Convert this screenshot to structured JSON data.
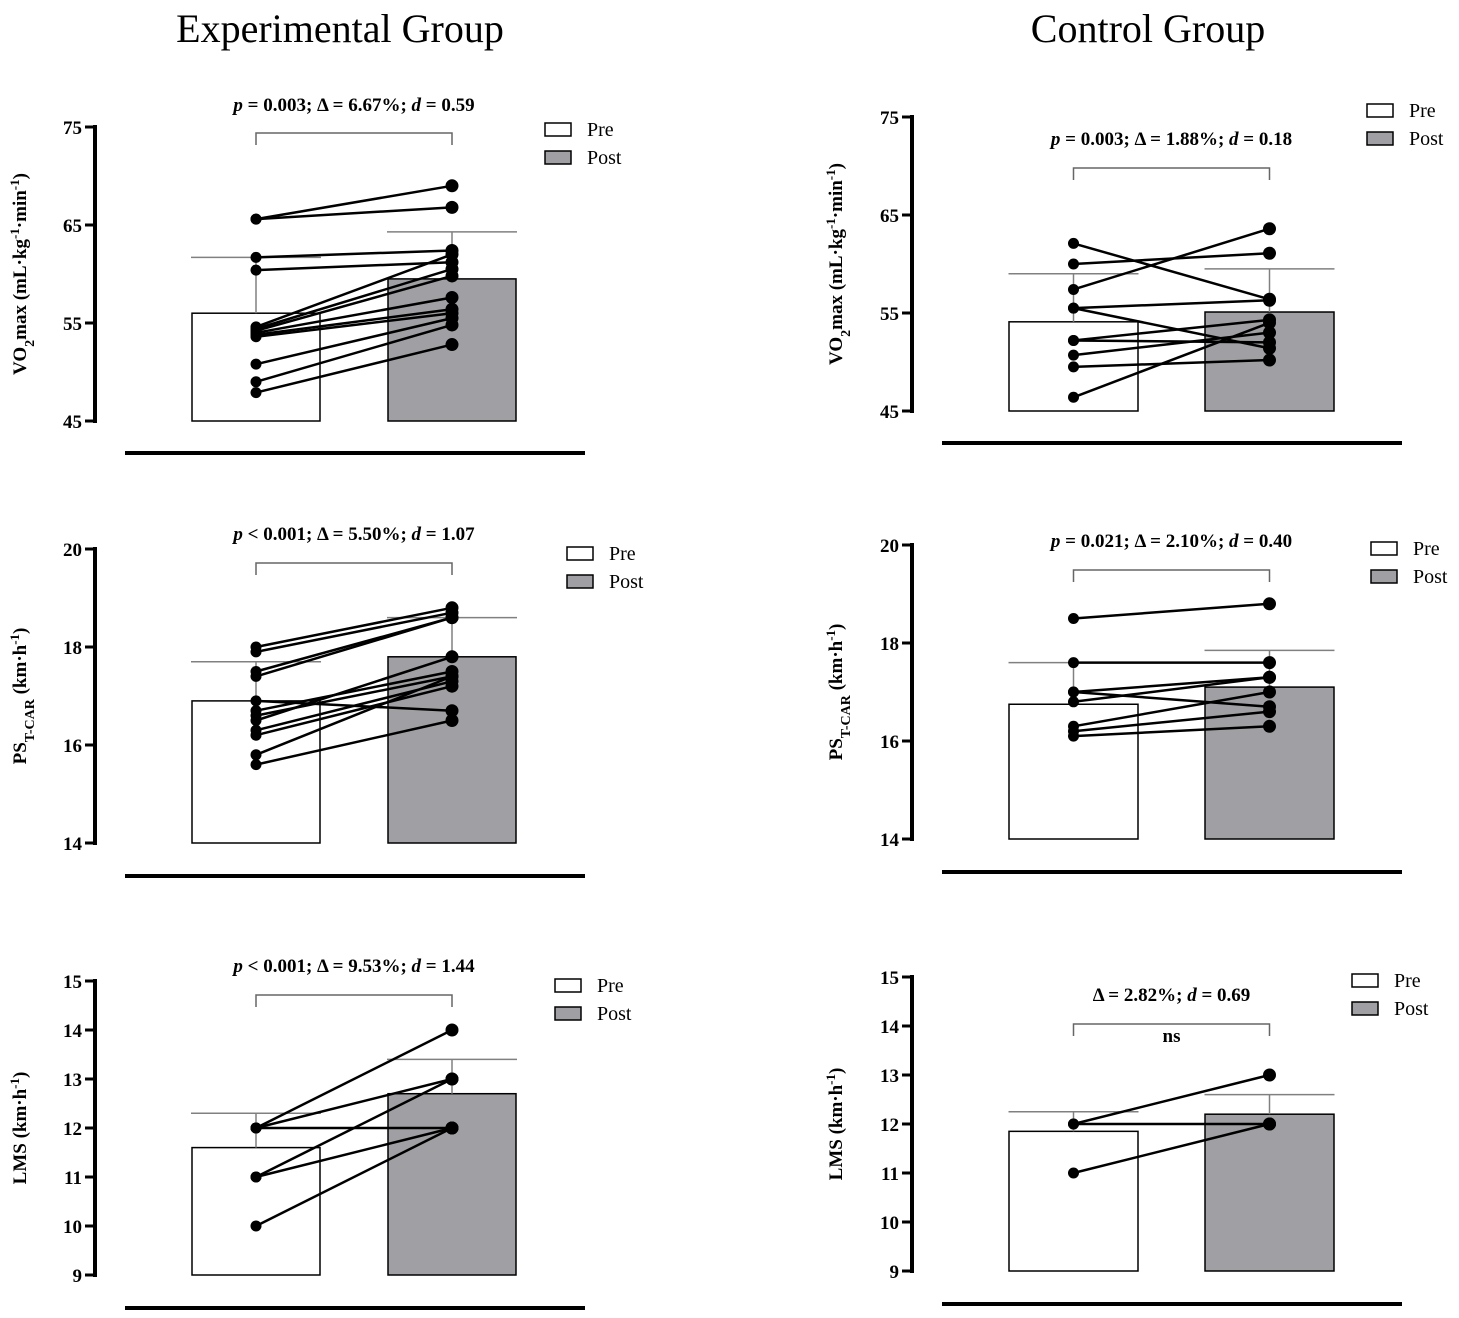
{
  "titles": [
    "Experimental Group",
    "Control Group"
  ],
  "colors": {
    "pre_fill": "#ffffff",
    "post_fill": "#a0a0a4",
    "line": "#000000",
    "errorbar": "#808080"
  },
  "chart_data": [
    {
      "id": "exp-vo2",
      "type": "bar",
      "group": "Experimental Group",
      "categories": [
        "Pre",
        "Post"
      ],
      "means": [
        56.0,
        59.5
      ],
      "sd_upper": [
        61.7,
        64.3
      ],
      "ylim": [
        45,
        75
      ],
      "yticks": [
        "45",
        "55",
        "65",
        "75"
      ],
      "ylabel": [
        {
          "t": "VO"
        },
        {
          "t": "2",
          "sub": true
        },
        {
          "t": "max  (mL·kg"
        },
        {
          "t": "-1",
          "sup": true
        },
        {
          "t": "·min"
        },
        {
          "t": "-1",
          "sup": true
        },
        {
          "t": ")"
        }
      ],
      "annotation": [
        {
          "t": "p",
          "i": true
        },
        {
          "t": " = 0.003; Δ = 6.67%; "
        },
        {
          "t": "d",
          "i": true
        },
        {
          "t": " = 0.59"
        }
      ],
      "ns": null,
      "pairs": [
        [
          65.6,
          69.0
        ],
        [
          65.6,
          66.8
        ],
        [
          61.7,
          62.4
        ],
        [
          60.4,
          61.2
        ],
        [
          54.6,
          62.0
        ],
        [
          54.4,
          60.5
        ],
        [
          54.2,
          59.8
        ],
        [
          54.0,
          57.6
        ],
        [
          53.8,
          56.4
        ],
        [
          53.6,
          56.0
        ],
        [
          50.8,
          55.5
        ],
        [
          49.0,
          54.8
        ],
        [
          47.9,
          52.8
        ]
      ],
      "legend": [
        "Pre",
        "Post"
      ]
    },
    {
      "id": "ctrl-vo2",
      "type": "bar",
      "group": "Control Group",
      "categories": [
        "Pre",
        "Post"
      ],
      "means": [
        54.1,
        55.1
      ],
      "sd_upper": [
        59.0,
        59.5
      ],
      "ylim": [
        45,
        75
      ],
      "yticks": [
        "45",
        "55",
        "65",
        "75"
      ],
      "ylabel": [
        {
          "t": "VO"
        },
        {
          "t": "2",
          "sub": true
        },
        {
          "t": "max  (mL·kg"
        },
        {
          "t": "-1",
          "sup": true
        },
        {
          "t": "·min"
        },
        {
          "t": "-1",
          "sup": true
        },
        {
          "t": ")"
        }
      ],
      "annotation": [
        {
          "t": "p",
          "i": true
        },
        {
          "t": " = 0.003; Δ = 1.88%; "
        },
        {
          "t": "d",
          "i": true
        },
        {
          "t": " = 0.18"
        }
      ],
      "ns": null,
      "pairs": [
        [
          62.1,
          56.4
        ],
        [
          60.0,
          61.1
        ],
        [
          57.4,
          63.6
        ],
        [
          55.5,
          56.3
        ],
        [
          55.5,
          51.4
        ],
        [
          52.2,
          54.3
        ],
        [
          52.2,
          52.0
        ],
        [
          50.7,
          53.0
        ],
        [
          49.5,
          50.2
        ],
        [
          46.4,
          54.0
        ]
      ],
      "legend": [
        "Pre",
        "Post"
      ]
    },
    {
      "id": "exp-ps",
      "type": "bar",
      "group": "Experimental Group",
      "categories": [
        "Pre",
        "Post"
      ],
      "means": [
        16.9,
        17.8
      ],
      "sd_upper": [
        17.7,
        18.6
      ],
      "ylim": [
        14,
        20
      ],
      "yticks": [
        "14",
        "16",
        "18",
        "20"
      ],
      "ylabel": [
        {
          "t": "PS"
        },
        {
          "t": "T-CAR",
          "sub": true
        },
        {
          "t": "  (km·h"
        },
        {
          "t": "-1",
          "sup": true
        },
        {
          "t": ")"
        }
      ],
      "annotation": [
        {
          "t": "p",
          "i": true
        },
        {
          "t": " < 0.001; Δ = 5.50%; "
        },
        {
          "t": "d",
          "i": true
        },
        {
          "t": " = 1.07"
        }
      ],
      "ns": null,
      "pairs": [
        [
          18.0,
          18.8
        ],
        [
          17.9,
          18.7
        ],
        [
          17.5,
          18.6
        ],
        [
          17.4,
          18.6
        ],
        [
          16.9,
          16.7
        ],
        [
          16.7,
          17.5
        ],
        [
          16.6,
          17.4
        ],
        [
          16.5,
          17.8
        ],
        [
          16.3,
          17.3
        ],
        [
          16.2,
          17.2
        ],
        [
          15.8,
          17.4
        ],
        [
          15.6,
          16.5
        ]
      ],
      "legend": [
        "Pre",
        "Post"
      ]
    },
    {
      "id": "ctrl-ps",
      "type": "bar",
      "group": "Control Group",
      "categories": [
        "Pre",
        "Post"
      ],
      "means": [
        16.75,
        17.1
      ],
      "sd_upper": [
        17.6,
        17.85
      ],
      "ylim": [
        14,
        20
      ],
      "yticks": [
        "14",
        "16",
        "18",
        "20"
      ],
      "ylabel": [
        {
          "t": "PS"
        },
        {
          "t": "T-CAR",
          "sub": true
        },
        {
          "t": "  (km·h"
        },
        {
          "t": "-1",
          "sup": true
        },
        {
          "t": ")"
        }
      ],
      "annotation": [
        {
          "t": "p",
          "i": true
        },
        {
          "t": " = 0.021; Δ = 2.10%; "
        },
        {
          "t": "d",
          "i": true
        },
        {
          "t": " = 0.40"
        }
      ],
      "ns": null,
      "pairs": [
        [
          18.5,
          18.8
        ],
        [
          17.6,
          17.6
        ],
        [
          17.0,
          17.3
        ],
        [
          17.0,
          16.7
        ],
        [
          16.8,
          17.3
        ],
        [
          16.3,
          17.0
        ],
        [
          16.2,
          16.6
        ],
        [
          16.1,
          16.3
        ]
      ],
      "legend": [
        "Pre",
        "Post"
      ]
    },
    {
      "id": "exp-lms",
      "type": "bar",
      "group": "Experimental Group",
      "categories": [
        "Pre",
        "Post"
      ],
      "means": [
        11.6,
        12.7
      ],
      "sd_upper": [
        12.3,
        13.4
      ],
      "ylim": [
        9,
        15
      ],
      "yticks": [
        "9",
        "10",
        "11",
        "12",
        "13",
        "14",
        "15"
      ],
      "ylabel": [
        {
          "t": "LMS (km·h"
        },
        {
          "t": "-1",
          "sup": true
        },
        {
          "t": ")"
        }
      ],
      "annotation": [
        {
          "t": "p",
          "i": true
        },
        {
          "t": " < 0.001; Δ = 9.53%; "
        },
        {
          "t": "d",
          "i": true
        },
        {
          "t": " = 1.44"
        }
      ],
      "ns": null,
      "pairs": [
        [
          12,
          14
        ],
        [
          12,
          13
        ],
        [
          12,
          12
        ],
        [
          11,
          13
        ],
        [
          11,
          12
        ],
        [
          10,
          12
        ]
      ],
      "legend": [
        "Pre",
        "Post"
      ]
    },
    {
      "id": "ctrl-lms",
      "type": "bar",
      "group": "Control Group",
      "categories": [
        "Pre",
        "Post"
      ],
      "means": [
        11.85,
        12.2
      ],
      "sd_upper": [
        12.25,
        12.6
      ],
      "ylim": [
        9,
        15
      ],
      "yticks": [
        "9",
        "10",
        "11",
        "12",
        "13",
        "14",
        "15"
      ],
      "ylabel": [
        {
          "t": "LMS (km·h"
        },
        {
          "t": "-1",
          "sup": true
        },
        {
          "t": ")"
        }
      ],
      "annotation": [
        {
          "t": "Δ = 2.82%; "
        },
        {
          "t": "d",
          "i": true
        },
        {
          "t": " = 0.69"
        }
      ],
      "ns": "ns",
      "pairs": [
        [
          12,
          13
        ],
        [
          12,
          12
        ],
        [
          11,
          12
        ]
      ],
      "legend": [
        "Pre",
        "Post"
      ]
    }
  ]
}
